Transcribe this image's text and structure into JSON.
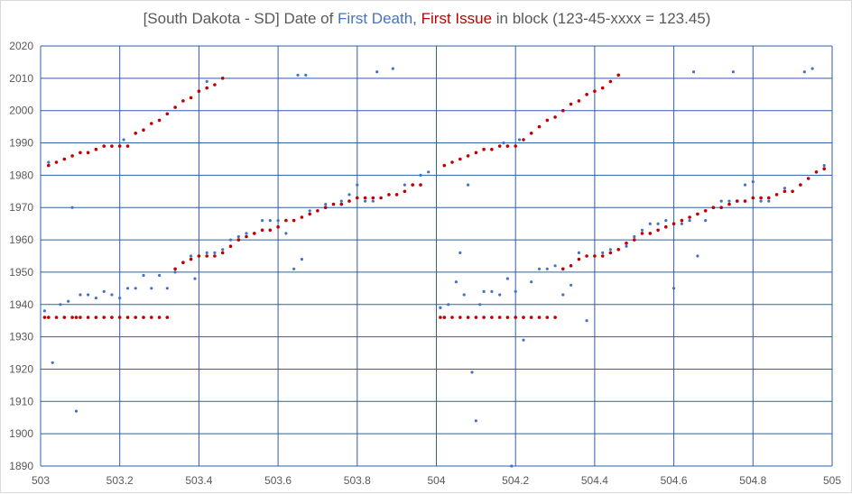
{
  "chart_data": {
    "type": "scatter",
    "title": {
      "part1": "[South Dakota - SD] Date of ",
      "part2": "First Death",
      "part3": ", ",
      "part4": "First Issue",
      "part5": " in block (123-45-xxxx = 123.45)"
    },
    "xlim": [
      503,
      505
    ],
    "ylim": [
      1890,
      2020
    ],
    "xticks": [
      "503",
      "503.2",
      "503.4",
      "503.6",
      "503.8",
      "504",
      "504.2",
      "504.4",
      "504.6",
      "504.8",
      "505"
    ],
    "yticks": [
      "1890",
      "1900",
      "1910",
      "1920",
      "1930",
      "1940",
      "1950",
      "1960",
      "1970",
      "1980",
      "1990",
      "2000",
      "2010",
      "2020"
    ],
    "grid": true,
    "colors": {
      "first_death": "#4472c4",
      "first_issue": "#c00000",
      "grid": "#2e5fa8",
      "title_death": "#4472c4",
      "title_issue": "#c00000"
    },
    "series": [
      {
        "key": "first_death",
        "points": [
          [
            503.01,
            1938
          ],
          [
            503.02,
            1984
          ],
          [
            503.03,
            1922
          ],
          [
            503.05,
            1940
          ],
          [
            503.07,
            1941
          ],
          [
            503.08,
            1970
          ],
          [
            503.09,
            1907
          ],
          [
            503.1,
            1943
          ],
          [
            503.12,
            1943
          ],
          [
            503.14,
            1942
          ],
          [
            503.16,
            1944
          ],
          [
            503.18,
            1943
          ],
          [
            503.2,
            1989
          ],
          [
            503.2,
            1942
          ],
          [
            503.21,
            1991
          ],
          [
            503.22,
            1945
          ],
          [
            503.24,
            1945
          ],
          [
            503.26,
            1949
          ],
          [
            503.28,
            1945
          ],
          [
            503.3,
            1949
          ],
          [
            503.32,
            1945
          ],
          [
            503.34,
            1950
          ],
          [
            503.36,
            1953
          ],
          [
            503.38,
            1955
          ],
          [
            503.39,
            1948
          ],
          [
            503.4,
            1955
          ],
          [
            503.42,
            1956
          ],
          [
            503.42,
            2009
          ],
          [
            503.44,
            1956
          ],
          [
            503.46,
            1957
          ],
          [
            503.48,
            1960
          ],
          [
            503.5,
            1961
          ],
          [
            503.52,
            1962
          ],
          [
            503.54,
            1962
          ],
          [
            503.56,
            1966
          ],
          [
            503.58,
            1966
          ],
          [
            503.6,
            1966
          ],
          [
            503.62,
            1962
          ],
          [
            503.64,
            1951
          ],
          [
            503.65,
            2011
          ],
          [
            503.66,
            1954
          ],
          [
            503.67,
            2011
          ],
          [
            503.68,
            1969
          ],
          [
            503.72,
            1971
          ],
          [
            503.76,
            1972
          ],
          [
            503.78,
            1974
          ],
          [
            503.8,
            1977
          ],
          [
            503.82,
            1972
          ],
          [
            503.84,
            1972
          ],
          [
            503.85,
            2012
          ],
          [
            503.89,
            2013
          ],
          [
            503.9,
            1974
          ],
          [
            503.92,
            1977
          ],
          [
            503.94,
            1977
          ],
          [
            503.96,
            1980
          ],
          [
            503.98,
            1981
          ],
          [
            504.01,
            1939
          ],
          [
            504.03,
            1940
          ],
          [
            504.05,
            1947
          ],
          [
            504.06,
            1956
          ],
          [
            504.07,
            1943
          ],
          [
            504.08,
            1977
          ],
          [
            504.09,
            1919
          ],
          [
            504.1,
            1904
          ],
          [
            504.11,
            1940
          ],
          [
            504.12,
            1944
          ],
          [
            504.14,
            1944
          ],
          [
            504.16,
            1943
          ],
          [
            504.17,
            1990
          ],
          [
            504.18,
            1948
          ],
          [
            504.19,
            1890
          ],
          [
            504.2,
            1944
          ],
          [
            504.21,
            1991
          ],
          [
            504.22,
            1929
          ],
          [
            504.24,
            1947
          ],
          [
            504.26,
            1951
          ],
          [
            504.28,
            1951
          ],
          [
            504.3,
            1952
          ],
          [
            504.32,
            1943
          ],
          [
            504.34,
            1946
          ],
          [
            504.36,
            1956
          ],
          [
            504.38,
            1935
          ],
          [
            504.4,
            1955
          ],
          [
            504.42,
            1956
          ],
          [
            504.44,
            1957
          ],
          [
            504.46,
            1957
          ],
          [
            504.48,
            1958
          ],
          [
            504.5,
            1961
          ],
          [
            504.52,
            1963
          ],
          [
            504.54,
            1965
          ],
          [
            504.56,
            1965
          ],
          [
            504.58,
            1966
          ],
          [
            504.6,
            1945
          ],
          [
            504.62,
            1965
          ],
          [
            504.64,
            1966
          ],
          [
            504.65,
            2012
          ],
          [
            504.66,
            1955
          ],
          [
            504.68,
            1966
          ],
          [
            504.7,
            1970
          ],
          [
            504.72,
            1972
          ],
          [
            504.74,
            1972
          ],
          [
            504.75,
            2012
          ],
          [
            504.76,
            1972
          ],
          [
            504.78,
            1977
          ],
          [
            504.8,
            1978
          ],
          [
            504.82,
            1972
          ],
          [
            504.84,
            1972
          ],
          [
            504.88,
            1976
          ],
          [
            504.9,
            1975
          ],
          [
            504.93,
            2012
          ],
          [
            504.95,
            2013
          ],
          [
            504.98,
            1983
          ]
        ]
      },
      {
        "key": "first_issue",
        "points": [
          [
            503.01,
            1936
          ],
          [
            503.02,
            1936
          ],
          [
            503.04,
            1936
          ],
          [
            503.06,
            1936
          ],
          [
            503.08,
            1936
          ],
          [
            503.09,
            1936
          ],
          [
            503.1,
            1936
          ],
          [
            503.12,
            1936
          ],
          [
            503.14,
            1936
          ],
          [
            503.16,
            1936
          ],
          [
            503.18,
            1936
          ],
          [
            503.2,
            1936
          ],
          [
            503.22,
            1936
          ],
          [
            503.24,
            1936
          ],
          [
            503.26,
            1936
          ],
          [
            503.28,
            1936
          ],
          [
            503.3,
            1936
          ],
          [
            503.32,
            1936
          ],
          [
            503.02,
            1983
          ],
          [
            503.04,
            1984
          ],
          [
            503.06,
            1985
          ],
          [
            503.08,
            1986
          ],
          [
            503.1,
            1987
          ],
          [
            503.12,
            1987
          ],
          [
            503.14,
            1988
          ],
          [
            503.16,
            1989
          ],
          [
            503.18,
            1989
          ],
          [
            503.2,
            1989
          ],
          [
            503.22,
            1989
          ],
          [
            503.24,
            1993
          ],
          [
            503.26,
            1994
          ],
          [
            503.28,
            1996
          ],
          [
            503.3,
            1997
          ],
          [
            503.32,
            1999
          ],
          [
            503.34,
            2001
          ],
          [
            503.36,
            2003
          ],
          [
            503.38,
            2004
          ],
          [
            503.4,
            2006
          ],
          [
            503.42,
            2007
          ],
          [
            503.44,
            2008
          ],
          [
            503.46,
            2010
          ],
          [
            503.34,
            1951
          ],
          [
            503.36,
            1953
          ],
          [
            503.38,
            1954
          ],
          [
            503.4,
            1955
          ],
          [
            503.42,
            1955
          ],
          [
            503.44,
            1955
          ],
          [
            503.46,
            1956
          ],
          [
            503.48,
            1958
          ],
          [
            503.5,
            1960
          ],
          [
            503.52,
            1961
          ],
          [
            503.54,
            1962
          ],
          [
            503.56,
            1963
          ],
          [
            503.58,
            1963
          ],
          [
            503.6,
            1964
          ],
          [
            503.62,
            1966
          ],
          [
            503.64,
            1966
          ],
          [
            503.66,
            1967
          ],
          [
            503.68,
            1968
          ],
          [
            503.7,
            1969
          ],
          [
            503.72,
            1970
          ],
          [
            503.74,
            1971
          ],
          [
            503.76,
            1971
          ],
          [
            503.78,
            1972
          ],
          [
            503.8,
            1973
          ],
          [
            503.82,
            1973
          ],
          [
            503.84,
            1973
          ],
          [
            503.86,
            1973
          ],
          [
            503.88,
            1974
          ],
          [
            503.9,
            1974
          ],
          [
            503.92,
            1975
          ],
          [
            503.94,
            1977
          ],
          [
            503.96,
            1977
          ],
          [
            504.01,
            1936
          ],
          [
            504.02,
            1936
          ],
          [
            504.04,
            1936
          ],
          [
            504.06,
            1936
          ],
          [
            504.08,
            1936
          ],
          [
            504.1,
            1936
          ],
          [
            504.12,
            1936
          ],
          [
            504.14,
            1936
          ],
          [
            504.16,
            1936
          ],
          [
            504.18,
            1936
          ],
          [
            504.2,
            1936
          ],
          [
            504.22,
            1936
          ],
          [
            504.24,
            1936
          ],
          [
            504.26,
            1936
          ],
          [
            504.28,
            1936
          ],
          [
            504.3,
            1936
          ],
          [
            504.02,
            1983
          ],
          [
            504.04,
            1984
          ],
          [
            504.06,
            1985
          ],
          [
            504.08,
            1986
          ],
          [
            504.1,
            1987
          ],
          [
            504.12,
            1988
          ],
          [
            504.14,
            1988
          ],
          [
            504.16,
            1989
          ],
          [
            504.18,
            1989
          ],
          [
            504.2,
            1989
          ],
          [
            504.22,
            1991
          ],
          [
            504.24,
            1993
          ],
          [
            504.26,
            1995
          ],
          [
            504.28,
            1997
          ],
          [
            504.3,
            1998
          ],
          [
            504.32,
            2000
          ],
          [
            504.34,
            2002
          ],
          [
            504.36,
            2003
          ],
          [
            504.38,
            2005
          ],
          [
            504.4,
            2006
          ],
          [
            504.42,
            2007
          ],
          [
            504.44,
            2009
          ],
          [
            504.46,
            2011
          ],
          [
            504.32,
            1951
          ],
          [
            504.34,
            1952
          ],
          [
            504.36,
            1954
          ],
          [
            504.38,
            1955
          ],
          [
            504.4,
            1955
          ],
          [
            504.42,
            1955
          ],
          [
            504.44,
            1956
          ],
          [
            504.46,
            1957
          ],
          [
            504.48,
            1959
          ],
          [
            504.5,
            1960
          ],
          [
            504.52,
            1962
          ],
          [
            504.54,
            1962
          ],
          [
            504.56,
            1963
          ],
          [
            504.58,
            1964
          ],
          [
            504.6,
            1965
          ],
          [
            504.62,
            1966
          ],
          [
            504.64,
            1967
          ],
          [
            504.66,
            1968
          ],
          [
            504.68,
            1969
          ],
          [
            504.7,
            1970
          ],
          [
            504.72,
            1970
          ],
          [
            504.74,
            1971
          ],
          [
            504.76,
            1972
          ],
          [
            504.78,
            1972
          ],
          [
            504.8,
            1973
          ],
          [
            504.82,
            1973
          ],
          [
            504.84,
            1973
          ],
          [
            504.86,
            1974
          ],
          [
            504.88,
            1975
          ],
          [
            504.9,
            1975
          ],
          [
            504.92,
            1977
          ],
          [
            504.94,
            1979
          ],
          [
            504.96,
            1981
          ],
          [
            504.98,
            1982
          ]
        ]
      }
    ]
  }
}
